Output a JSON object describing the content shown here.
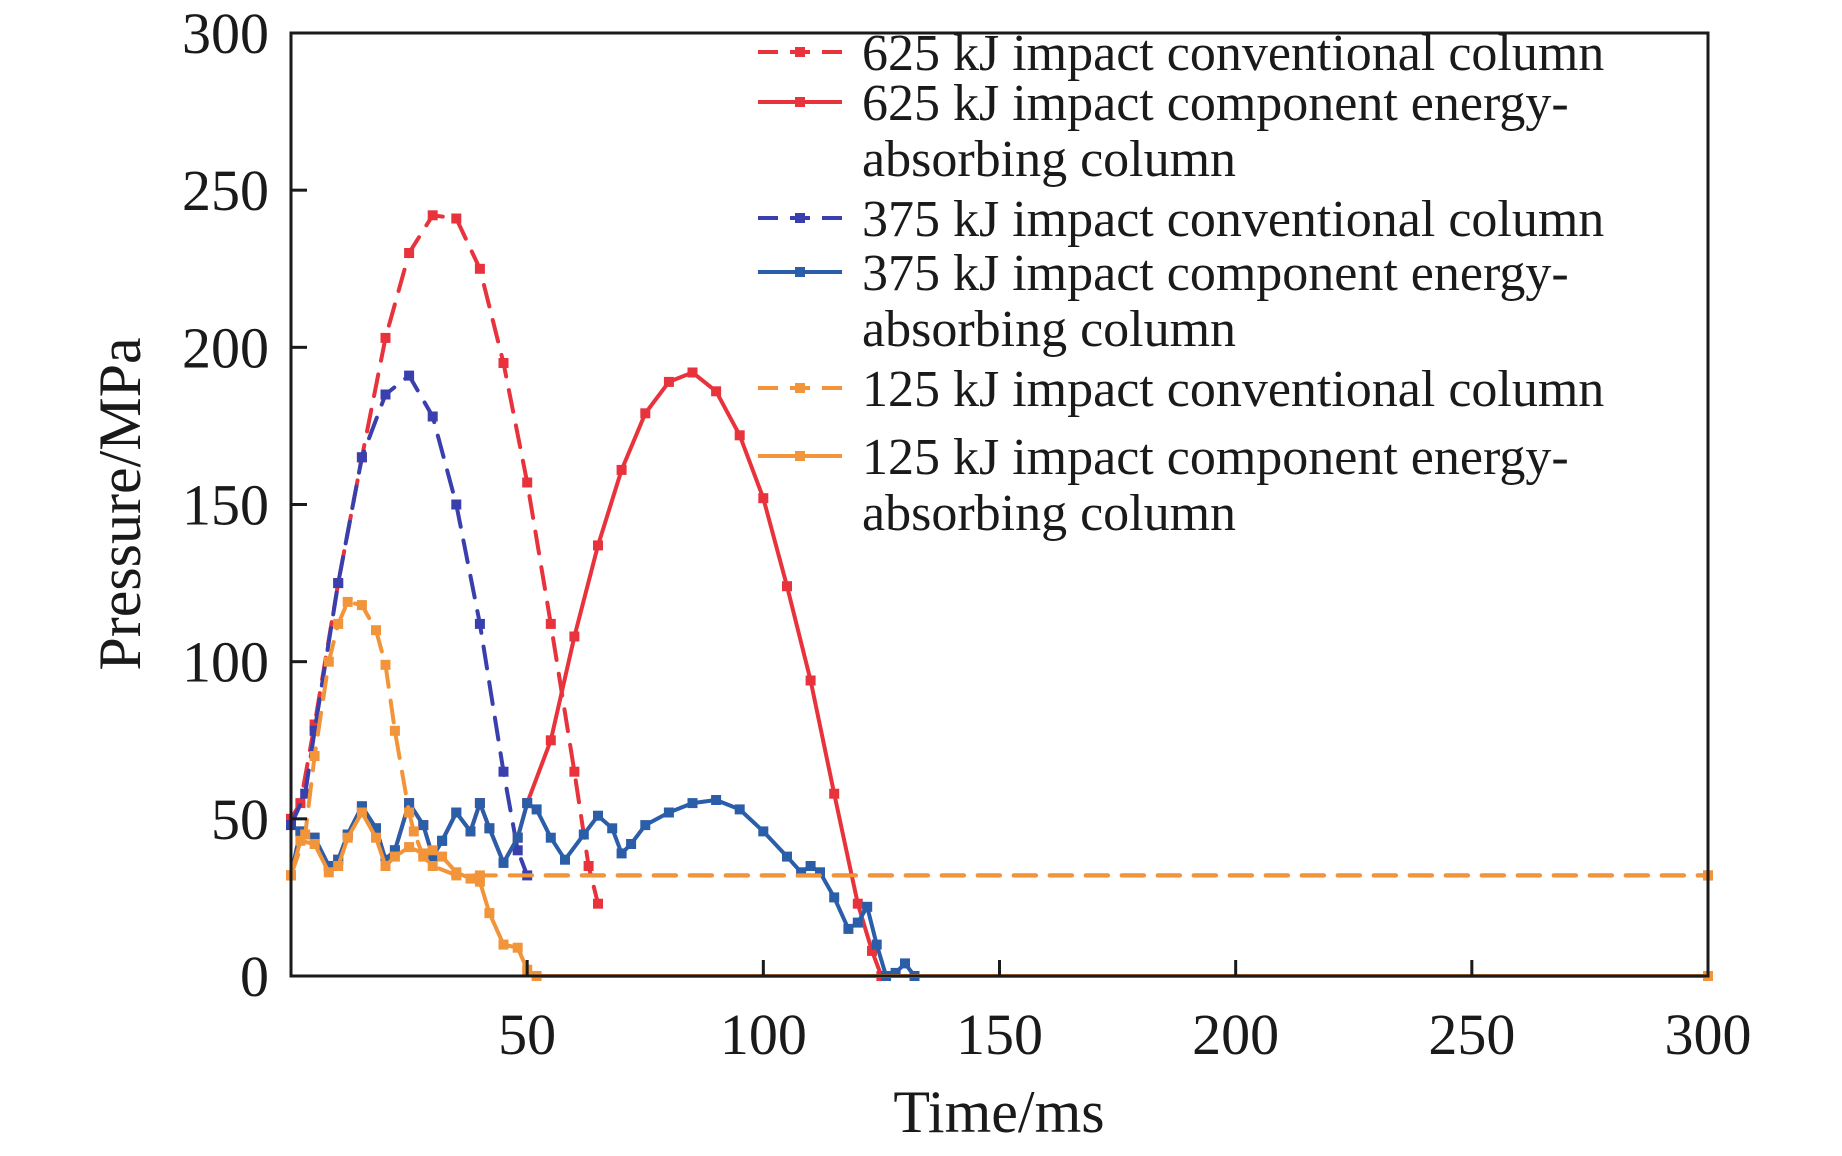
{
  "chart_data": {
    "type": "line",
    "xlabel": "Time/ms",
    "ylabel": "Pressure/MPa",
    "xlim": [
      0,
      300
    ],
    "ylim": [
      0,
      300
    ],
    "xticks": [
      "50",
      "100",
      "150",
      "200",
      "250",
      "300"
    ],
    "yticks": [
      "0",
      "50",
      "100",
      "150",
      "200",
      "250",
      "300"
    ],
    "grid": false,
    "legend_position": "top-right",
    "series": [
      {
        "name": "625 kJ impact conventional column",
        "color": "#e8323c",
        "dash": "dashed",
        "x": [
          0,
          2,
          5,
          10,
          15,
          20,
          25,
          30,
          35,
          40,
          45,
          50,
          55,
          60,
          63,
          65
        ],
        "y": [
          50,
          55,
          80,
          125,
          165,
          203,
          230,
          242,
          241,
          225,
          195,
          157,
          112,
          65,
          35,
          23
        ]
      },
      {
        "name": "625 kJ impact component energy-absorbing column",
        "color": "#e8323c",
        "dash": "solid",
        "x": [
          0,
          2,
          5,
          8,
          10,
          12,
          15,
          18,
          20,
          22,
          25,
          28,
          30,
          32,
          35,
          38,
          40,
          42,
          45,
          48,
          50,
          55,
          60,
          65,
          70,
          75,
          80,
          85,
          90,
          95,
          100,
          105,
          110,
          115,
          120,
          123,
          125,
          300
        ],
        "y": [
          32,
          46,
          44,
          35,
          37,
          45,
          54,
          47,
          37,
          40,
          55,
          48,
          38,
          43,
          52,
          46,
          55,
          47,
          36,
          44,
          55,
          75,
          108,
          137,
          161,
          179,
          189,
          192,
          186,
          172,
          152,
          124,
          94,
          58,
          23,
          8,
          0,
          0
        ]
      },
      {
        "name": "375 kJ impact conventional column",
        "color": "#3a3fae",
        "dash": "dashed",
        "x": [
          0,
          3,
          5,
          10,
          15,
          20,
          25,
          30,
          35,
          40,
          45,
          48,
          50,
          300
        ],
        "y": [
          48,
          58,
          78,
          125,
          165,
          185,
          191,
          178,
          150,
          112,
          65,
          40,
          32,
          32
        ]
      },
      {
        "name": "375 kJ impact component energy-absorbing column",
        "color": "#2a5ea8",
        "dash": "solid",
        "x": [
          0,
          2,
          5,
          8,
          10,
          12,
          15,
          18,
          20,
          22,
          25,
          28,
          30,
          32,
          35,
          38,
          40,
          42,
          45,
          48,
          50,
          52,
          55,
          58,
          62,
          65,
          68,
          70,
          72,
          75,
          80,
          85,
          90,
          95,
          100,
          105,
          108,
          110,
          112,
          115,
          118,
          120,
          122,
          124,
          126,
          128,
          130,
          132,
          300
        ],
        "y": [
          32,
          46,
          44,
          35,
          37,
          45,
          54,
          47,
          37,
          40,
          55,
          48,
          38,
          43,
          52,
          46,
          55,
          47,
          36,
          44,
          55,
          53,
          44,
          37,
          45,
          51,
          47,
          39,
          42,
          48,
          52,
          55,
          56,
          53,
          46,
          38,
          33,
          35,
          33,
          25,
          15,
          17,
          22,
          10,
          0,
          1,
          4,
          0,
          0
        ]
      },
      {
        "name": "125 kJ impact conventional column",
        "color": "#f2943a",
        "dash": "dashed",
        "x": [
          0,
          3,
          5,
          8,
          10,
          12,
          15,
          18,
          20,
          22,
          25,
          26,
          28,
          30,
          35,
          40,
          300
        ],
        "y": [
          32,
          45,
          70,
          100,
          112,
          119,
          118,
          110,
          99,
          78,
          52,
          46,
          38,
          35,
          32,
          32,
          32
        ]
      },
      {
        "name": "125 kJ impact component energy-absorbing column",
        "color": "#f2943a",
        "dash": "solid",
        "x": [
          0,
          2,
          5,
          8,
          10,
          12,
          15,
          18,
          20,
          22,
          25,
          28,
          30,
          32,
          35,
          38,
          40,
          42,
          45,
          48,
          50,
          52,
          300
        ],
        "y": [
          32,
          43,
          42,
          33,
          35,
          44,
          52,
          44,
          35,
          38,
          41,
          39,
          40,
          38,
          33,
          31,
          30,
          20,
          10,
          9,
          2,
          0,
          0
        ]
      }
    ]
  }
}
